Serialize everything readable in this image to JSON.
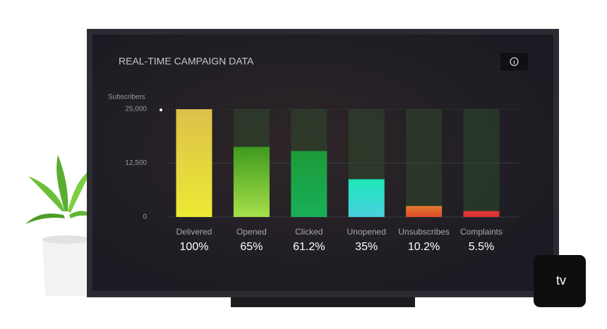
{
  "chart_data": {
    "type": "bar",
    "title": "REAL-TIME CAMPAIGN DATA",
    "y_label": "Subscribers",
    "categories": [
      "Delivered",
      "Opened",
      "Clicked",
      "Unopened",
      "Unsubscribes",
      "Complaints"
    ],
    "values": [
      25000,
      16250,
      15300,
      8750,
      2550,
      1375
    ],
    "value_labels": [
      "100%",
      "65%",
      "61.2%",
      "35%",
      "10.2%",
      "5.5%"
    ],
    "colors": [
      [
        "#dcc04a",
        "#eeea34"
      ],
      [
        "#3f9a1e",
        "#a6e04a"
      ],
      [
        "#1d9a3a",
        "#18b058"
      ],
      [
        "#1de8b8",
        "#4ad0e0"
      ],
      [
        "#e07a30",
        "#e04a2a"
      ],
      [
        "#e03a3a",
        "#d83030"
      ]
    ],
    "ylim": [
      0,
      25000
    ],
    "yticks": [
      0,
      {
        "value": 12500,
        "label": "12,500"
      },
      {
        "value": 25000,
        "label": "25,000"
      }
    ],
    "grid": true
  },
  "device": {
    "label": "tv"
  }
}
